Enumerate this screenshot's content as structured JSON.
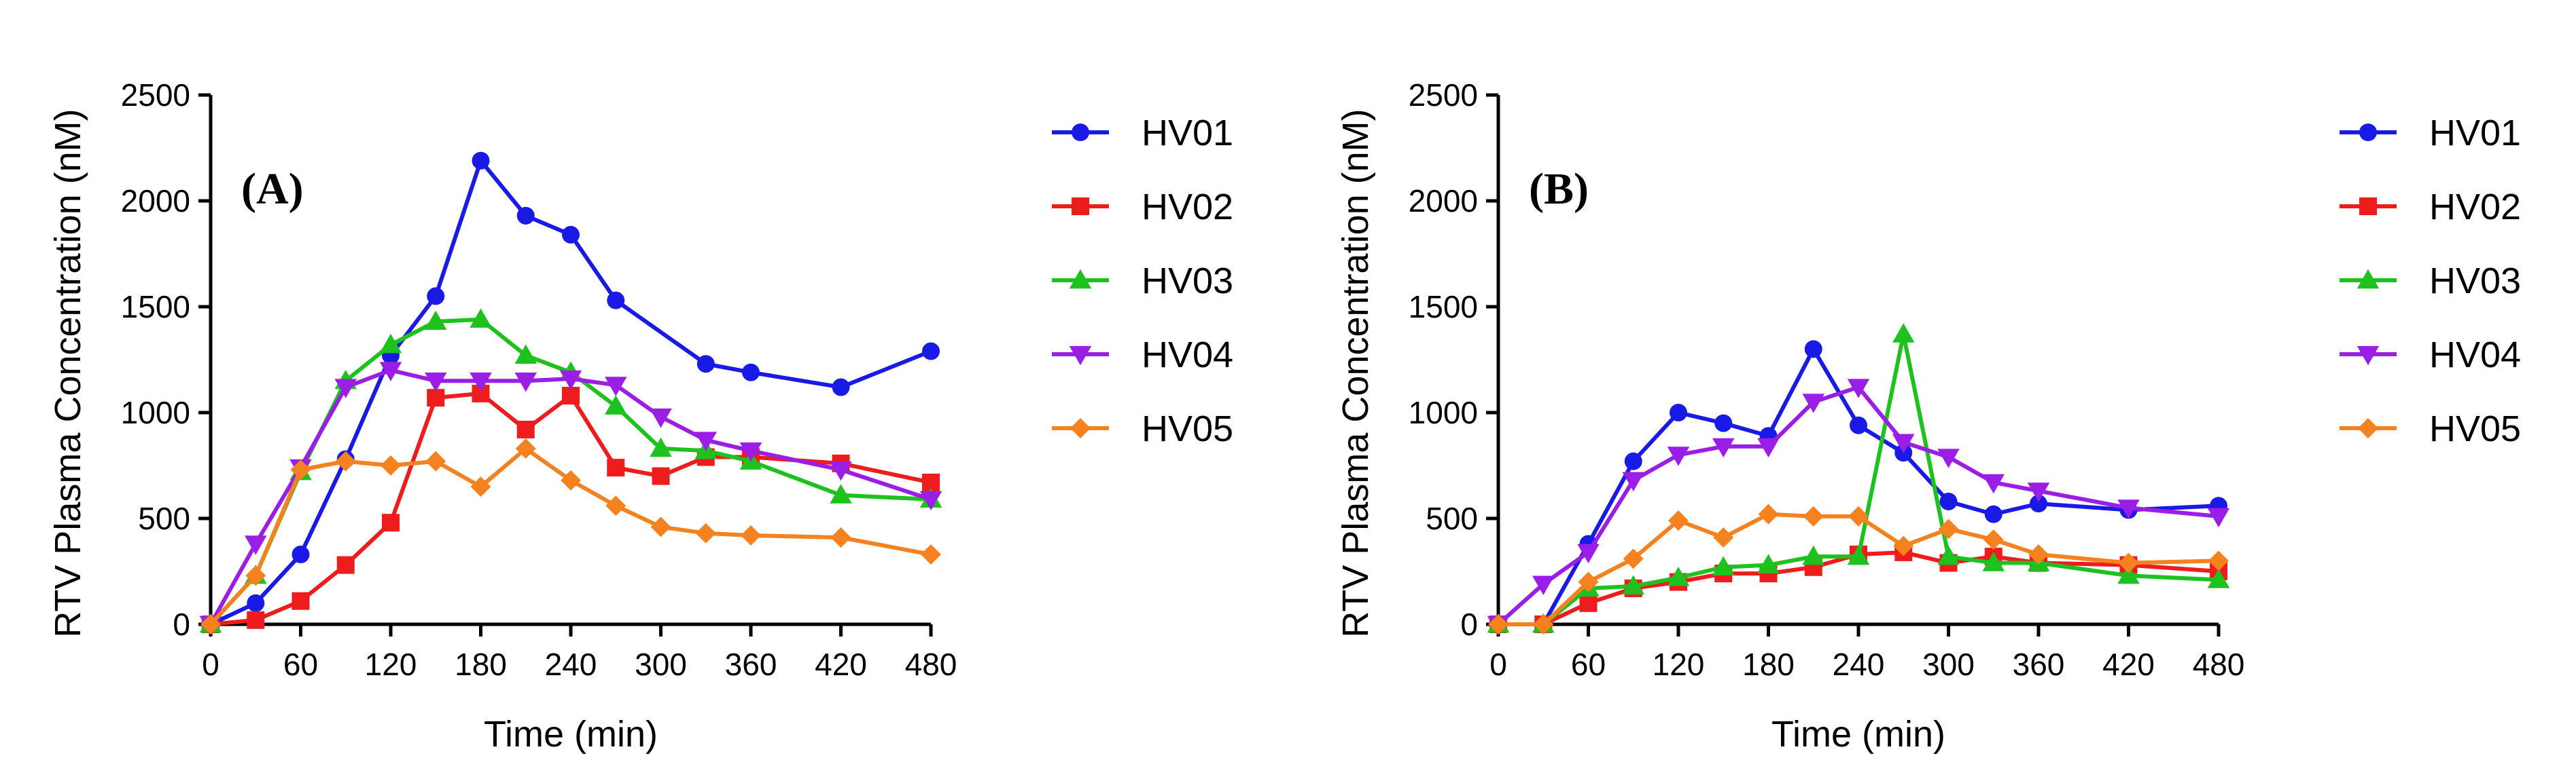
{
  "chart_data": [
    {
      "type": "line",
      "panel_label": "(A)",
      "xlabel": "Time (min)",
      "ylabel": "RTV Plasma Concentration (nM)",
      "xlim": [
        0,
        480
      ],
      "ylim": [
        0,
        2500
      ],
      "xticks": [
        0,
        60,
        120,
        180,
        240,
        300,
        360,
        420,
        480
      ],
      "yticks": [
        0,
        500,
        1000,
        1500,
        2000,
        2500
      ],
      "grid": false,
      "legend_position": "right",
      "series": [
        {
          "name": "HV01",
          "color": "#1a1ae6",
          "marker": "circle",
          "x": [
            0,
            30,
            60,
            90,
            120,
            150,
            180,
            210,
            240,
            270,
            330,
            360,
            420,
            480
          ],
          "y": [
            0,
            100,
            330,
            780,
            1270,
            1550,
            2190,
            1930,
            1840,
            1530,
            1230,
            1190,
            1120,
            1290
          ]
        },
        {
          "name": "HV02",
          "color": "#ee1c1c",
          "marker": "square",
          "x": [
            0,
            30,
            60,
            90,
            120,
            150,
            180,
            210,
            240,
            270,
            300,
            330,
            360,
            420,
            480
          ],
          "y": [
            0,
            20,
            110,
            280,
            480,
            1070,
            1090,
            920,
            1080,
            740,
            700,
            790,
            790,
            760,
            670
          ]
        },
        {
          "name": "HV03",
          "color": "#1ec21e",
          "marker": "triangle-up",
          "x": [
            0,
            30,
            60,
            90,
            120,
            150,
            180,
            210,
            240,
            270,
            300,
            330,
            360,
            420,
            480
          ],
          "y": [
            0,
            230,
            720,
            1150,
            1320,
            1430,
            1440,
            1270,
            1190,
            1030,
            830,
            820,
            770,
            610,
            590
          ]
        },
        {
          "name": "HV04",
          "color": "#9a1ee6",
          "marker": "triangle-down",
          "x": [
            0,
            30,
            60,
            90,
            120,
            150,
            180,
            210,
            240,
            270,
            300,
            330,
            360,
            420,
            480
          ],
          "y": [
            0,
            380,
            740,
            1120,
            1200,
            1150,
            1150,
            1150,
            1160,
            1130,
            980,
            870,
            820,
            730,
            590
          ]
        },
        {
          "name": "HV05",
          "color": "#f5821e",
          "marker": "diamond",
          "x": [
            0,
            30,
            60,
            90,
            120,
            150,
            180,
            210,
            240,
            270,
            300,
            330,
            360,
            420,
            480
          ],
          "y": [
            0,
            230,
            730,
            770,
            750,
            770,
            650,
            830,
            680,
            560,
            460,
            430,
            420,
            410,
            330
          ]
        }
      ]
    },
    {
      "type": "line",
      "panel_label": "(B)",
      "xlabel": "Time (min)",
      "ylabel": "RTV Plasma Concentration (nM)",
      "xlim": [
        0,
        480
      ],
      "ylim": [
        0,
        2500
      ],
      "xticks": [
        0,
        60,
        120,
        180,
        240,
        300,
        360,
        420,
        480
      ],
      "yticks": [
        0,
        500,
        1000,
        1500,
        2000,
        2500
      ],
      "grid": false,
      "legend_position": "right",
      "series": [
        {
          "name": "HV01",
          "color": "#1a1ae6",
          "marker": "circle",
          "x": [
            0,
            30,
            60,
            90,
            120,
            150,
            180,
            210,
            240,
            270,
            300,
            330,
            360,
            420,
            480
          ],
          "y": [
            0,
            0,
            380,
            770,
            1000,
            950,
            890,
            1300,
            940,
            810,
            580,
            520,
            570,
            540,
            560
          ]
        },
        {
          "name": "HV02",
          "color": "#ee1c1c",
          "marker": "square",
          "x": [
            0,
            30,
            60,
            90,
            120,
            150,
            180,
            210,
            240,
            270,
            300,
            330,
            360,
            420,
            480
          ],
          "y": [
            0,
            0,
            100,
            170,
            200,
            240,
            240,
            270,
            330,
            340,
            290,
            320,
            290,
            280,
            250
          ]
        },
        {
          "name": "HV03",
          "color": "#1ec21e",
          "marker": "triangle-up",
          "x": [
            0,
            30,
            60,
            90,
            120,
            150,
            180,
            210,
            240,
            270,
            300,
            330,
            360,
            420,
            480
          ],
          "y": [
            0,
            0,
            170,
            180,
            220,
            270,
            280,
            320,
            320,
            1370,
            320,
            290,
            290,
            230,
            210
          ]
        },
        {
          "name": "HV04",
          "color": "#9a1ee6",
          "marker": "triangle-down",
          "x": [
            0,
            30,
            60,
            90,
            120,
            150,
            180,
            210,
            240,
            270,
            300,
            330,
            360,
            420,
            480
          ],
          "y": [
            0,
            190,
            340,
            680,
            800,
            840,
            840,
            1050,
            1120,
            860,
            790,
            670,
            630,
            550,
            510
          ]
        },
        {
          "name": "HV05",
          "color": "#f5821e",
          "marker": "diamond",
          "x": [
            0,
            30,
            60,
            90,
            120,
            150,
            180,
            210,
            240,
            270,
            300,
            330,
            360,
            420,
            480
          ],
          "y": [
            0,
            0,
            200,
            310,
            490,
            410,
            520,
            510,
            510,
            370,
            450,
            400,
            330,
            290,
            300
          ]
        }
      ]
    }
  ]
}
